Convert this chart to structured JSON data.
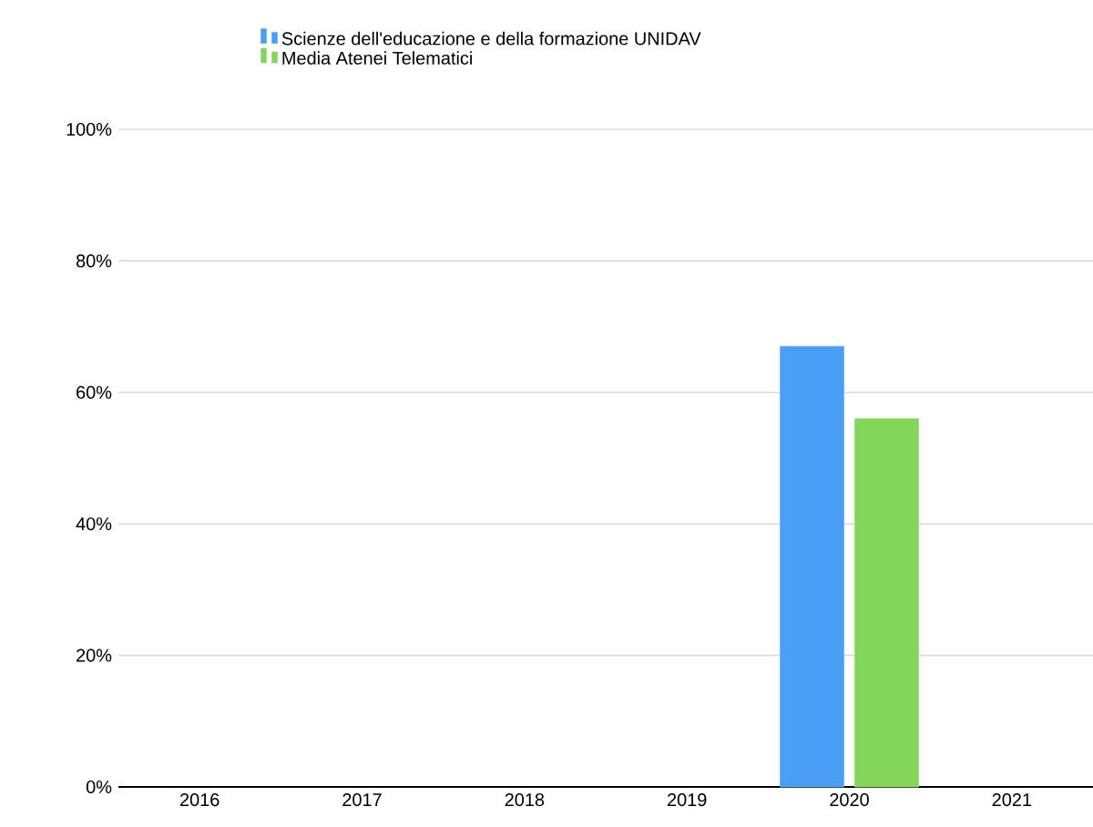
{
  "chart_data": {
    "type": "bar",
    "categories": [
      "2016",
      "2017",
      "2018",
      "2019",
      "2020",
      "2021"
    ],
    "series": [
      {
        "name": "Scienze dell'educazione e della formazione UNIDAV",
        "color": "#4a9ff5",
        "values": [
          null,
          null,
          null,
          null,
          67,
          null
        ]
      },
      {
        "name": "Media Atenei Telematici",
        "color": "#83d65a",
        "values": [
          null,
          null,
          null,
          null,
          56,
          null
        ]
      }
    ],
    "ylim": [
      0,
      100
    ],
    "yticks": [
      {
        "value": 0,
        "label": "0%"
      },
      {
        "value": 20,
        "label": "20%"
      },
      {
        "value": 40,
        "label": "40%"
      },
      {
        "value": 60,
        "label": "60%"
      },
      {
        "value": 80,
        "label": "80%"
      },
      {
        "value": 100,
        "label": "100%"
      }
    ],
    "grid": "y",
    "legend": "top"
  }
}
